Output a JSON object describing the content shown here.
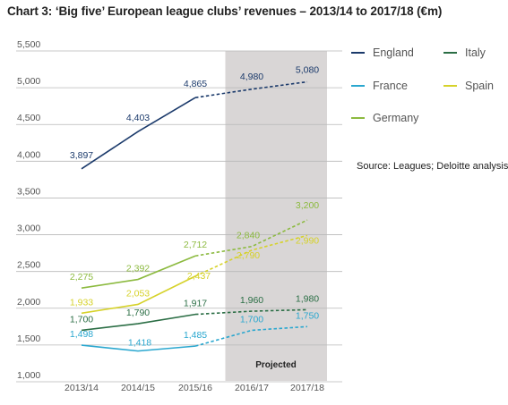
{
  "chart_title": "Chart 3: ‘Big five’ European league clubs’ revenues – 2013/14 to 2017/18 (€m)",
  "source_note": "Source: Leagues; Deloitte analysis.",
  "chart_data": {
    "type": "line",
    "title": "Chart 3: ‘Big five’ European league clubs’ revenues – 2013/14 to 2017/18 (€m)",
    "categories": [
      "2013/14",
      "2014/15",
      "2015/16",
      "2016/17",
      "2017/18"
    ],
    "ylim": [
      1000,
      5500
    ],
    "yticks": [
      "1,000",
      "1,500",
      "2,000",
      "2,500",
      "3,000",
      "3,500",
      "4,000",
      "4,500",
      "5,000",
      "5,500"
    ],
    "grid": true,
    "legend_position": "right",
    "projected_label": "Projected",
    "projected_categories": [
      "2016/17",
      "2017/18"
    ],
    "projected_shading_color": "#d9d6d6",
    "series": [
      {
        "name": "England",
        "key": "england",
        "color": "#1b3a6b",
        "values": [
          3897,
          4403,
          4865,
          4980,
          5080
        ],
        "labels": [
          "3,897",
          "4,403",
          "4,865",
          "4,980",
          "5,080"
        ]
      },
      {
        "name": "Italy",
        "key": "italy",
        "color": "#2b6e45",
        "values": [
          1700,
          1790,
          1917,
          1960,
          1980
        ],
        "labels": [
          "1,700",
          "1,790",
          "1,917",
          "1,960",
          "1,980"
        ]
      },
      {
        "name": "France",
        "key": "france",
        "color": "#2aa7cf",
        "values": [
          1498,
          1418,
          1485,
          1700,
          1750
        ],
        "labels": [
          "1,498",
          "1,418",
          "1,485",
          "1,700",
          "1,750"
        ]
      },
      {
        "name": "Spain",
        "key": "spain",
        "color": "#d6d22a",
        "values": [
          1933,
          2053,
          2437,
          2790,
          2990
        ],
        "labels": [
          "1,933",
          "2,053",
          "2,437",
          "2,790",
          "2,990"
        ]
      },
      {
        "name": "Germany",
        "key": "germany",
        "color": "#8cba3f",
        "values": [
          2275,
          2392,
          2712,
          2840,
          3200
        ],
        "labels": [
          "2,275",
          "2,392",
          "2,712",
          "2,840",
          "3,200"
        ]
      }
    ]
  },
  "legend": [
    {
      "key": "england",
      "label": "England"
    },
    {
      "key": "italy",
      "label": "Italy"
    },
    {
      "key": "france",
      "label": "France"
    },
    {
      "key": "spain",
      "label": "Spain"
    },
    {
      "key": "germany",
      "label": "Germany"
    }
  ]
}
